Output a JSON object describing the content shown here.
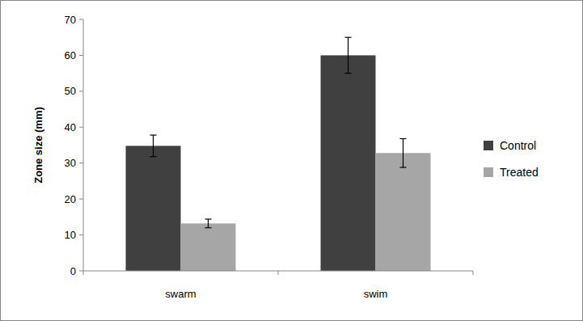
{
  "chart_data": {
    "type": "bar",
    "y_label": "Zone size  (mm)",
    "categories": [
      "swarm",
      "swim"
    ],
    "series": [
      {
        "name": "Control",
        "color": "#404040",
        "values": [
          34.8,
          60
        ],
        "errors": [
          3,
          5
        ]
      },
      {
        "name": "Treated",
        "color": "#a6a6a6",
        "values": [
          13.2,
          32.8
        ],
        "errors": [
          1.2,
          4
        ]
      }
    ],
    "ylim": [
      0,
      70
    ],
    "yticks": [
      0,
      10,
      20,
      30,
      40,
      50,
      60,
      70
    ],
    "grid": false,
    "legend": "right"
  }
}
